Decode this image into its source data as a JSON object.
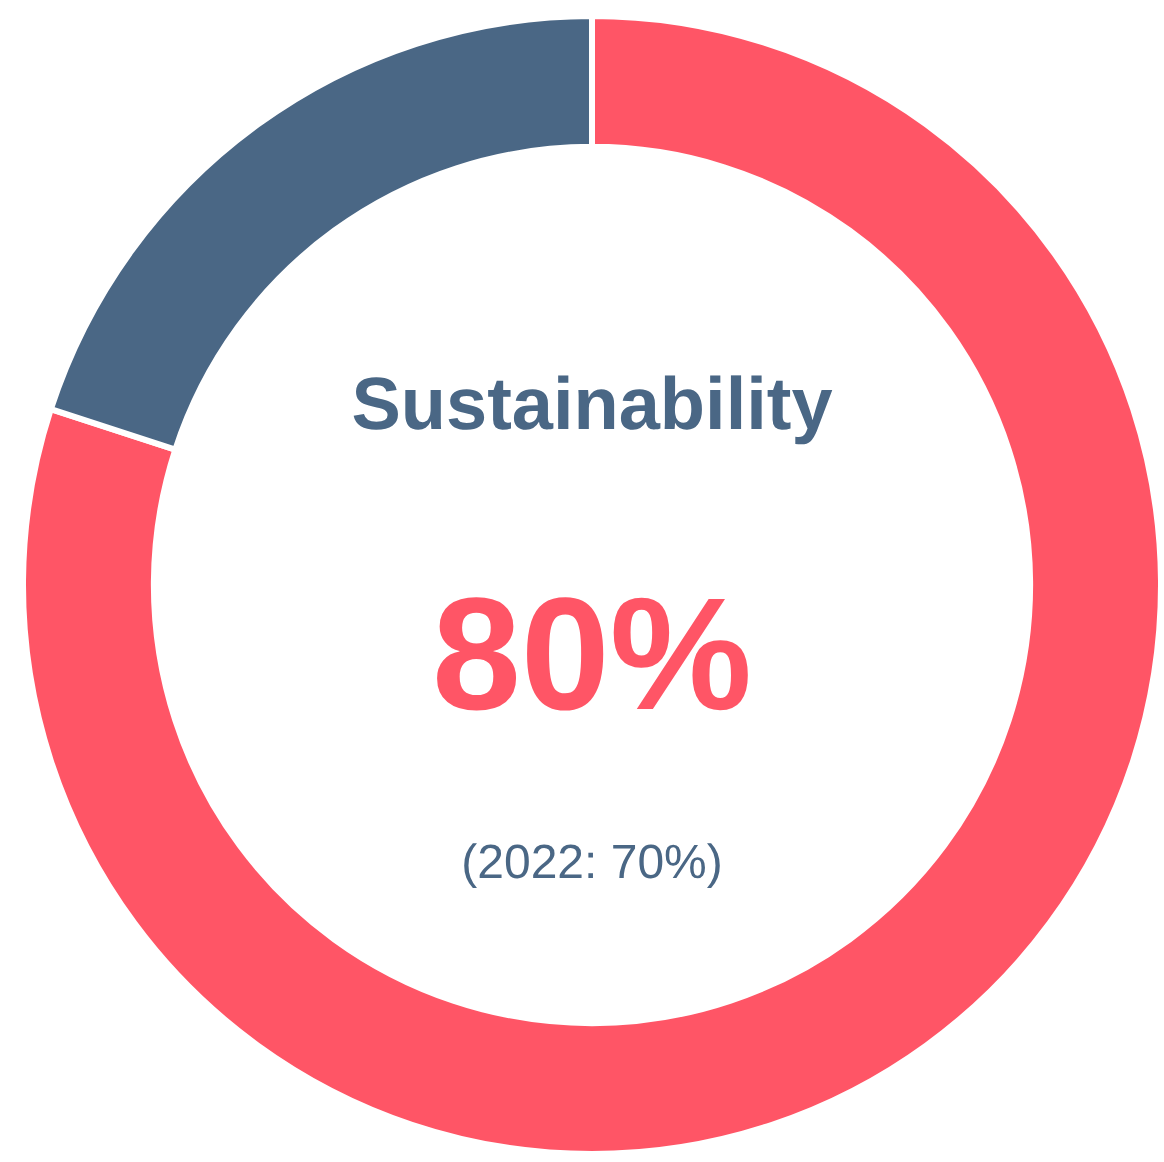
{
  "chart_data": {
    "type": "donut",
    "title": "Sustainability",
    "categories": [
      null,
      null
    ],
    "values": [
      80,
      20
    ],
    "colors": [
      "#ff5566",
      "#4a6785"
    ],
    "annotations": [
      "80%",
      "(2022: 70%)"
    ],
    "legend": false
  }
}
